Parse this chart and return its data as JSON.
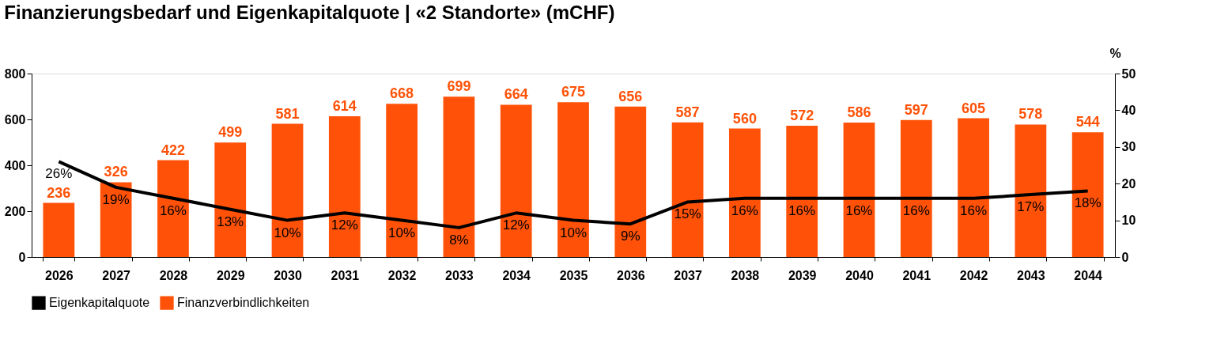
{
  "chart_data": {
    "type": "bar",
    "title": "Finanzierungsbedarf und Eigenkapitalquote | «2 Standorte» (mCHF)",
    "y2label": "%",
    "categories": [
      "2026",
      "2027",
      "2028",
      "2029",
      "2030",
      "2031",
      "2032",
      "2033",
      "2034",
      "2035",
      "2036",
      "2037",
      "2038",
      "2039",
      "2040",
      "2041",
      "2042",
      "2043",
      "2044"
    ],
    "series": [
      {
        "name": "Eigenkapitalquote",
        "type": "line",
        "axis": "y2",
        "color": "#000000",
        "values": [
          26,
          19,
          16,
          13,
          10,
          12,
          10,
          8,
          12,
          10,
          9,
          15,
          16,
          16,
          16,
          16,
          16,
          17,
          18
        ],
        "value_labels": [
          "26%",
          "19%",
          "16%",
          "13%",
          "10%",
          "12%",
          "10%",
          "8%",
          "12%",
          "10%",
          "9%",
          "15%",
          "16%",
          "16%",
          "16%",
          "16%",
          "16%",
          "17%",
          "18%"
        ]
      },
      {
        "name": "Finanzverbindlichkeiten",
        "color": "#ff5208",
        "values": [
          236,
          326,
          422,
          499,
          581,
          614,
          668,
          699,
          664,
          675,
          656,
          587,
          560,
          572,
          586,
          597,
          605,
          578,
          544
        ]
      }
    ],
    "ylim": [
      0,
      800
    ],
    "yticks": [
      0,
      200,
      400,
      600,
      800
    ],
    "y2lim": [
      0,
      50
    ],
    "y2ticks": [
      0,
      10,
      20,
      30,
      40,
      50
    ],
    "data_labels": true,
    "grid": false,
    "legend": "bottom",
    "marker": "none",
    "line_style": "solid"
  }
}
